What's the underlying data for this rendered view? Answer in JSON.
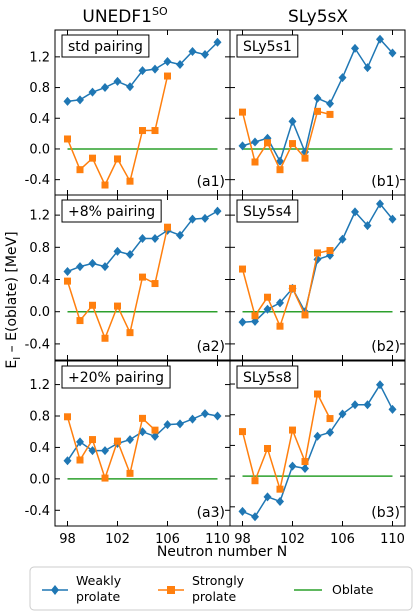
{
  "columns": [
    {
      "title": "UNEDF1",
      "sup": "SO"
    },
    {
      "title": "SLy5sX",
      "sup": ""
    }
  ],
  "ylabel_main": "E",
  "ylabel_sub": "I",
  "ylabel_rest": " – E(oblate) [MeV]",
  "xlabel": "Neutron number N",
  "legend": {
    "weakly": [
      "Weakly",
      "prolate"
    ],
    "strongly": [
      "Strongly",
      "prolate"
    ],
    "oblate": "Oblate"
  },
  "colors": {
    "weakly": "#1f77b4",
    "strongly": "#ff7f0e",
    "oblate": "#2ca02c"
  },
  "chart_data": [
    {
      "type": "line",
      "panel": "(a1)",
      "box_label": "std pairing",
      "xlim": [
        97,
        111
      ],
      "ylim": [
        -0.6,
        1.55
      ],
      "yticks": [
        -0.4,
        0.0,
        0.4,
        0.8,
        1.2
      ],
      "xticks": [
        98,
        102,
        106,
        110
      ],
      "series": [
        {
          "name": "Weakly prolate",
          "x": [
            98,
            99,
            100,
            101,
            102,
            103,
            104,
            105,
            106,
            107,
            108,
            109,
            110
          ],
          "y": [
            0.62,
            0.64,
            0.74,
            0.8,
            0.88,
            0.81,
            1.02,
            1.04,
            1.14,
            1.1,
            1.27,
            1.23,
            1.39
          ]
        },
        {
          "name": "Strongly prolate",
          "x": [
            98,
            99,
            100,
            101,
            102,
            103,
            104,
            105,
            106
          ],
          "y": [
            0.13,
            -0.27,
            -0.12,
            -0.47,
            -0.13,
            -0.42,
            0.24,
            0.24,
            0.95
          ]
        },
        {
          "name": "Oblate",
          "x": [
            98,
            110
          ],
          "y": [
            0,
            0
          ]
        }
      ]
    },
    {
      "type": "line",
      "panel": "(b1)",
      "box_label": "SLy5s1",
      "xlim": [
        97,
        111
      ],
      "ylim": [
        -0.6,
        1.55
      ],
      "yticks": [
        -0.4,
        0.0,
        0.4,
        0.8,
        1.2
      ],
      "xticks": [
        98,
        102,
        106,
        110
      ],
      "series": [
        {
          "name": "Weakly prolate",
          "x": [
            98,
            99,
            100,
            101,
            102,
            103,
            104,
            105,
            106,
            107,
            108,
            109,
            110
          ],
          "y": [
            0.04,
            0.09,
            0.14,
            -0.16,
            0.36,
            -0.04,
            0.66,
            0.59,
            0.93,
            1.31,
            1.06,
            1.43,
            1.25
          ]
        },
        {
          "name": "Strongly prolate",
          "x": [
            98,
            99,
            100,
            101,
            102,
            103,
            104,
            105
          ],
          "y": [
            0.48,
            -0.17,
            0.08,
            -0.27,
            0.07,
            -0.12,
            0.49,
            0.45
          ]
        },
        {
          "name": "Oblate",
          "x": [
            98,
            110
          ],
          "y": [
            0,
            0
          ]
        }
      ]
    },
    {
      "type": "line",
      "panel": "(a2)",
      "box_label": "+8% pairing",
      "xlim": [
        97,
        111
      ],
      "ylim": [
        -0.6,
        1.45
      ],
      "yticks": [
        -0.4,
        0.0,
        0.4,
        0.8,
        1.2
      ],
      "xticks": [
        98,
        102,
        106,
        110
      ],
      "series": [
        {
          "name": "Weakly prolate",
          "x": [
            98,
            99,
            100,
            101,
            102,
            103,
            104,
            105,
            106,
            107,
            108,
            109,
            110
          ],
          "y": [
            0.5,
            0.56,
            0.6,
            0.56,
            0.75,
            0.71,
            0.91,
            0.91,
            1.01,
            0.95,
            1.15,
            1.16,
            1.25
          ]
        },
        {
          "name": "Strongly prolate",
          "x": [
            98,
            99,
            100,
            101,
            102,
            103,
            104,
            105,
            106
          ],
          "y": [
            0.38,
            -0.11,
            0.08,
            -0.33,
            0.07,
            -0.26,
            0.43,
            0.35,
            1.05
          ]
        },
        {
          "name": "Oblate",
          "x": [
            98,
            110
          ],
          "y": [
            0,
            0
          ]
        }
      ]
    },
    {
      "type": "line",
      "panel": "(b2)",
      "box_label": "SLy5s4",
      "xlim": [
        97,
        111
      ],
      "ylim": [
        -0.6,
        1.45
      ],
      "yticks": [
        -0.4,
        0.0,
        0.4,
        0.8,
        1.2
      ],
      "xticks": [
        98,
        102,
        106,
        110
      ],
      "series": [
        {
          "name": "Weakly prolate",
          "x": [
            98,
            99,
            100,
            101,
            102,
            103,
            104,
            105,
            106,
            107,
            108,
            109,
            110
          ],
          "y": [
            -0.13,
            -0.12,
            0.03,
            0.11,
            0.29,
            0.0,
            0.65,
            0.7,
            0.9,
            1.24,
            1.07,
            1.34,
            1.15
          ]
        },
        {
          "name": "Strongly prolate",
          "x": [
            98,
            99,
            100,
            101,
            102,
            103,
            104,
            105
          ],
          "y": [
            0.53,
            -0.05,
            0.18,
            -0.18,
            0.29,
            -0.04,
            0.73,
            0.76
          ]
        },
        {
          "name": "Oblate",
          "x": [
            98,
            110
          ],
          "y": [
            0,
            0
          ]
        }
      ]
    },
    {
      "type": "line",
      "panel": "(a3)",
      "box_label": "+20% pairing",
      "xlim": [
        97,
        111
      ],
      "ylim": [
        -0.6,
        1.5
      ],
      "yticks": [
        -0.4,
        0.0,
        0.4,
        0.8,
        1.2
      ],
      "xticks": [
        98,
        102,
        106,
        110
      ],
      "series": [
        {
          "name": "Weakly prolate",
          "x": [
            98,
            99,
            100,
            101,
            102,
            103,
            104,
            105,
            106,
            107,
            108,
            109,
            110
          ],
          "y": [
            0.23,
            0.47,
            0.36,
            0.36,
            0.45,
            0.5,
            0.6,
            0.54,
            0.69,
            0.7,
            0.76,
            0.83,
            0.8
          ]
        },
        {
          "name": "Strongly prolate",
          "x": [
            98,
            99,
            100,
            101,
            102,
            103,
            104,
            105
          ],
          "y": [
            0.79,
            0.24,
            0.5,
            0.01,
            0.48,
            0.07,
            0.77,
            0.62
          ]
        },
        {
          "name": "Oblate",
          "x": [
            98,
            110
          ],
          "y": [
            0,
            0
          ]
        }
      ]
    },
    {
      "type": "line",
      "panel": "(b3)",
      "box_label": "SLy5s8",
      "xlim": [
        97,
        111
      ],
      "ylim": [
        -0.65,
        1.5
      ],
      "yticks": [
        -0.4,
        0.0,
        0.4,
        0.8,
        1.2
      ],
      "xticks": [
        98,
        102,
        106,
        110
      ],
      "series": [
        {
          "name": "Weakly prolate",
          "x": [
            98,
            99,
            100,
            101,
            102,
            103,
            104,
            105,
            106,
            107,
            108,
            109,
            110
          ],
          "y": [
            -0.46,
            -0.53,
            -0.27,
            -0.33,
            0.13,
            0.1,
            0.52,
            0.57,
            0.81,
            0.93,
            0.93,
            1.19,
            0.87
          ]
        },
        {
          "name": "Strongly prolate",
          "x": [
            98,
            99,
            100,
            101,
            102,
            103,
            104,
            105
          ],
          "y": [
            0.58,
            -0.06,
            0.36,
            -0.17,
            0.6,
            0.19,
            1.07,
            0.75
          ]
        },
        {
          "name": "Oblate",
          "x": [
            98,
            110
          ],
          "y": [
            0,
            0
          ]
        }
      ]
    }
  ]
}
